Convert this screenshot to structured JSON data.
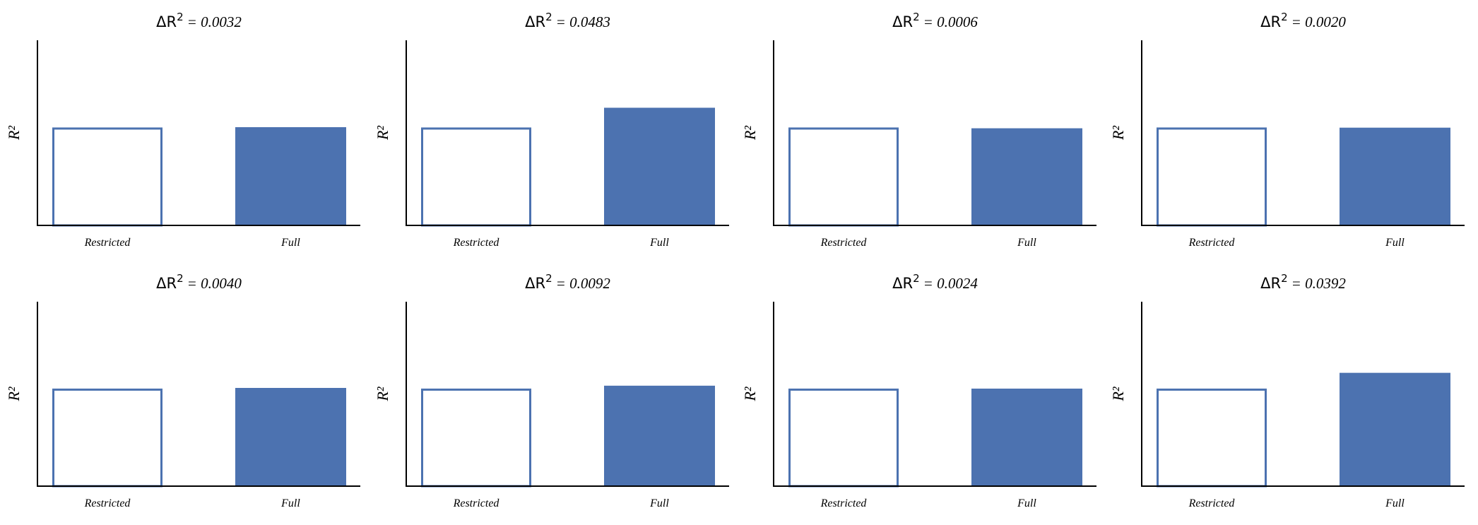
{
  "chart_data": {
    "type": "bar",
    "layout": "2x4 grid of subplots",
    "categories": [
      "Restricted",
      "Full"
    ],
    "ylabel": "R²",
    "ylim": [
      0,
      0.43
    ],
    "bar_color": "#4c72b0",
    "panels": [
      {
        "title_prefix": "ΔR",
        "title_sup": "2",
        "title_value": "= 0.0032",
        "delta": 0.0032,
        "values": [
          0.225,
          0.2282
        ]
      },
      {
        "title_prefix": "ΔR",
        "title_sup": "2",
        "title_value": "= 0.0483",
        "delta": 0.0483,
        "values": [
          0.225,
          0.2733
        ]
      },
      {
        "title_prefix": "ΔR",
        "title_sup": "2",
        "title_value": "= 0.0006",
        "delta": 0.0006,
        "values": [
          0.225,
          0.2256
        ]
      },
      {
        "title_prefix": "ΔR",
        "title_sup": "2",
        "title_value": "= 0.0020",
        "delta": 0.002,
        "values": [
          0.225,
          0.227
        ]
      },
      {
        "title_prefix": "ΔR",
        "title_sup": "2",
        "title_value": "= 0.0040",
        "delta": 0.004,
        "values": [
          0.225,
          0.229
        ]
      },
      {
        "title_prefix": "ΔR",
        "title_sup": "2",
        "title_value": "= 0.0092",
        "delta": 0.0092,
        "values": [
          0.225,
          0.2342
        ]
      },
      {
        "title_prefix": "ΔR",
        "title_sup": "2",
        "title_value": "= 0.0024",
        "delta": 0.0024,
        "values": [
          0.225,
          0.2274
        ]
      },
      {
        "title_prefix": "ΔR",
        "title_sup": "2",
        "title_value": "= 0.0392",
        "delta": 0.0392,
        "values": [
          0.225,
          0.2642
        ]
      }
    ]
  }
}
